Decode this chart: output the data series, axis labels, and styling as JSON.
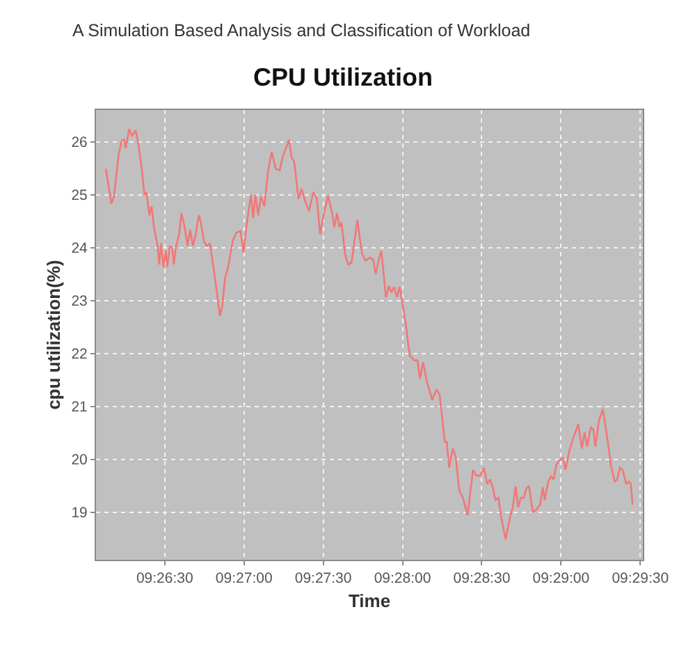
{
  "chart_data": {
    "type": "line",
    "title": "CPU Utilization",
    "xlabel": "Time",
    "ylabel": "cpu utilization(%)",
    "annotations": [
      "A Simulation Based Analysis and Classification of Workload"
    ],
    "x": [
      9.43547,
      9.43606,
      9.43633,
      9.43681,
      9.43714,
      9.43739,
      9.43756,
      9.43794,
      9.43822,
      9.43861,
      9.43892,
      9.43928,
      9.43953,
      9.43975,
      9.44006,
      9.44028,
      9.44053,
      9.44092,
      9.44108,
      9.44128,
      9.44153,
      9.44178,
      9.44194,
      9.44219,
      9.44247,
      9.44261,
      9.44286,
      9.44319,
      9.44342,
      9.44372,
      9.44406,
      9.44433,
      9.44464,
      9.44492,
      9.44525,
      9.44547,
      9.44578,
      9.44608,
      9.44642,
      9.44689,
      9.44728,
      9.44747,
      9.44772,
      9.448,
      9.44833,
      9.44881,
      9.44919,
      9.44964,
      9.44994,
      9.45025,
      9.45072,
      9.45097,
      9.45119,
      9.4515,
      9.45178,
      9.45214,
      9.45253,
      9.45292,
      9.45333,
      9.45375,
      9.45406,
      9.45442,
      9.45472,
      9.455,
      9.45528,
      9.45572,
      9.45606,
      9.45644,
      9.45683,
      9.45731,
      9.45767,
      9.458,
      9.45836,
      9.45883,
      9.45922,
      9.4595,
      9.45978,
      9.46003,
      9.46025,
      9.46064,
      9.46097,
      9.46131,
      9.46192,
      9.46239,
      9.46278,
      9.46322,
      9.46358,
      9.46386,
      9.46417,
      9.46444,
      9.46469,
      9.46492,
      9.46525,
      9.4655,
      9.46578,
      9.46608,
      9.46636,
      9.46664,
      9.46703,
      9.46742,
      9.46786,
      9.46825,
      9.4685,
      9.46883,
      9.46922,
      9.46978,
      9.47025,
      9.47058,
      9.47111,
      9.47131,
      9.47158,
      9.47194,
      9.47225,
      9.47264,
      9.47303,
      9.4735,
      9.47408,
      9.47444,
      9.47483,
      9.47522,
      9.47558,
      9.47589,
      9.47617,
      9.47644,
      9.47675,
      9.47703,
      9.4775,
      9.478,
      9.47828,
      9.47856,
      9.47883,
      9.47911,
      9.47942,
      9.47969,
      9.47997,
      9.48036,
      9.48075,
      9.48114,
      9.48142,
      9.48161,
      9.482,
      9.48228,
      9.48256,
      9.48283,
      9.48314,
      9.48353,
      9.48381,
      9.48419,
      9.48467,
      9.48514,
      9.48553,
      9.48581,
      9.48608,
      9.48647,
      9.48675,
      9.48694,
      9.48733,
      9.48772,
      9.48811,
      9.48858,
      9.48897,
      9.48925,
      9.48953,
      9.48981,
      9.49019,
      9.49047,
      9.49067,
      9.49086
    ],
    "series": [
      {
        "color": "#f07878",
        "values": [
          25.49,
          24.83,
          24.96,
          25.75,
          26.02,
          26.04,
          25.88,
          26.24,
          26.1,
          26.22,
          25.93,
          25.44,
          25.0,
          25.04,
          24.61,
          24.78,
          24.39,
          24.03,
          23.68,
          24.08,
          23.63,
          23.94,
          23.63,
          24.03,
          23.99,
          23.68,
          24.03,
          24.25,
          24.65,
          24.43,
          24.03,
          24.34,
          24.03,
          24.25,
          24.61,
          24.47,
          24.12,
          24.03,
          24.08,
          23.5,
          22.97,
          22.71,
          22.89,
          23.42,
          23.63,
          24.12,
          24.28,
          24.31,
          23.9,
          24.39,
          25.0,
          24.56,
          25.0,
          24.61,
          24.96,
          24.78,
          25.44,
          25.81,
          25.49,
          25.46,
          25.71,
          25.88,
          26.04,
          25.71,
          25.62,
          24.92,
          25.11,
          24.87,
          24.69,
          25.05,
          24.92,
          24.25,
          24.61,
          24.98,
          24.69,
          24.39,
          24.65,
          24.39,
          24.47,
          23.86,
          23.68,
          23.72,
          24.52,
          23.9,
          23.75,
          23.81,
          23.77,
          23.5,
          23.77,
          23.94,
          23.5,
          23.06,
          23.28,
          23.15,
          23.26,
          23.06,
          23.26,
          22.97,
          22.53,
          21.96,
          21.87,
          21.87,
          21.52,
          21.83,
          21.48,
          21.12,
          21.32,
          21.21,
          20.33,
          20.33,
          19.84,
          20.2,
          20.06,
          19.4,
          19.27,
          18.94,
          19.8,
          19.69,
          19.69,
          19.84,
          19.53,
          19.62,
          19.45,
          19.23,
          19.27,
          18.92,
          18.49,
          18.92,
          19.11,
          19.49,
          19.09,
          19.27,
          19.27,
          19.45,
          19.49,
          19.0,
          19.05,
          19.14,
          19.47,
          19.23,
          19.58,
          19.67,
          19.62,
          19.89,
          19.98,
          20.02,
          19.8,
          20.15,
          20.42,
          20.66,
          20.2,
          20.51,
          20.24,
          20.61,
          20.55,
          20.24,
          20.73,
          20.95,
          20.51,
          19.89,
          19.58,
          19.62,
          19.84,
          19.8,
          19.53,
          19.58,
          19.53,
          19.14
        ]
      }
    ],
    "xlim": [
      9.43444,
      9.49194
    ],
    "ylim": [
      18.1,
      26.6
    ],
    "xticks": [
      {
        "value": 9.441667,
        "label": "09:26:30"
      },
      {
        "value": 9.45,
        "label": "09:27:00"
      },
      {
        "value": 9.458333,
        "label": "09:27:30"
      },
      {
        "value": 9.466667,
        "label": "09:28:00"
      },
      {
        "value": 9.475,
        "label": "09:28:30"
      },
      {
        "value": 9.483333,
        "label": "09:29:00"
      },
      {
        "value": 9.491667,
        "label": "09:29:30"
      }
    ],
    "yticks": [
      19,
      20,
      21,
      22,
      23,
      24,
      25,
      26
    ],
    "grid": true,
    "line_style": "solid"
  }
}
